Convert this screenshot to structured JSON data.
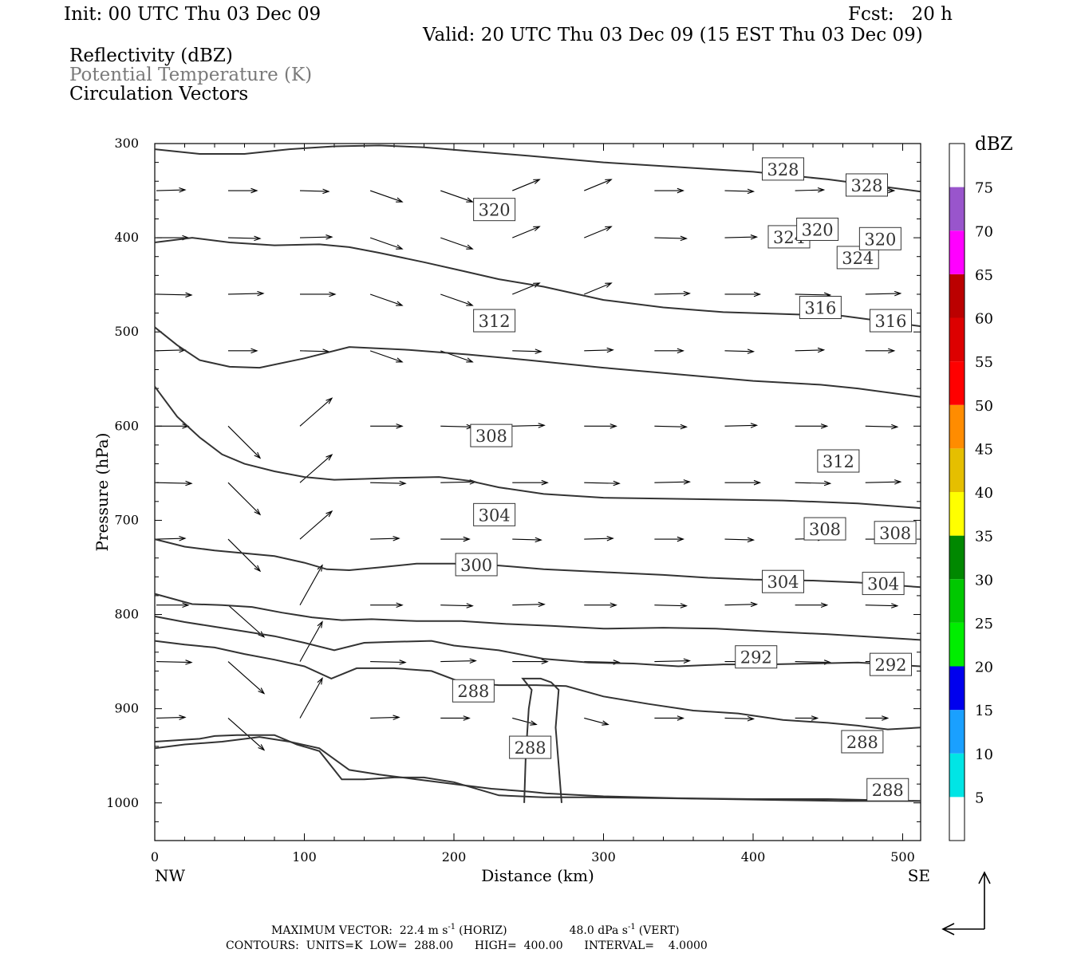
{
  "header": {
    "init": "Init: 00 UTC Thu 03 Dec 09",
    "fcst": "Fcst:   20 h",
    "valid": "Valid: 20 UTC Thu 03 Dec 09 (15 EST Thu 03 Dec 09)",
    "fields": [
      "Reflectivity (dBZ)",
      "Potential Temperature (K)",
      "Circulation Vectors"
    ]
  },
  "colors": {
    "axis": "#000000",
    "contour": "#333333",
    "field2_text": "#7a7a7a"
  },
  "footer": {
    "line1_left": "MAXIMUM VECTOR:  22.4 m s",
    "line1_sup1": "-1",
    "line1_mid": "(HORIZ)",
    "line1_right": "48.0 dPa s",
    "line1_sup2": "-1",
    "line1_end": "(VERT)",
    "line2": "CONTOURS:  UNITS=K  LOW=  288.00      HIGH=  400.00      INTERVAL=    4.0000"
  },
  "colorbar": {
    "unit": "dBZ",
    "ticks": [
      "5",
      "10",
      "15",
      "20",
      "25",
      "30",
      "35",
      "40",
      "45",
      "50",
      "55",
      "60",
      "65",
      "70",
      "75"
    ],
    "colors": [
      "#00e5e5",
      "#1aa0ff",
      "#0000ee",
      "#00ee00",
      "#00c800",
      "#008800",
      "#ffff00",
      "#e5bf00",
      "#ff8c00",
      "#ff0000",
      "#dd0000",
      "#bb0000",
      "#ff00ff",
      "#9955cc"
    ]
  },
  "chart_data": {
    "type": "contour",
    "xlabel": "Distance (km)",
    "ylabel": "Pressure (hPa)",
    "xlim": [
      0,
      512
    ],
    "ylim": [
      1040,
      300
    ],
    "xticks": [
      "0",
      "100",
      "200",
      "300",
      "400",
      "500"
    ],
    "yticks": [
      "300",
      "400",
      "500",
      "600",
      "700",
      "800",
      "900",
      "1000"
    ],
    "x_end_labels": {
      "left": "NW",
      "right": "SE"
    },
    "contour_units": "K",
    "contour_low": 288,
    "contour_high": 400,
    "contour_interval": 4,
    "contours": [
      {
        "level": 328,
        "labels": [
          [
            420,
            327
          ],
          [
            476,
            344
          ]
        ],
        "points": [
          [
            0,
            306
          ],
          [
            30,
            311
          ],
          [
            60,
            311
          ],
          [
            90,
            306
          ],
          [
            120,
            303
          ],
          [
            150,
            302
          ],
          [
            180,
            304
          ],
          [
            210,
            308
          ],
          [
            250,
            313
          ],
          [
            300,
            320
          ],
          [
            350,
            325
          ],
          [
            400,
            330
          ],
          [
            450,
            338
          ],
          [
            512,
            351
          ]
        ]
      },
      {
        "level": 324,
        "labels": [
          [
            424,
            399
          ],
          [
            470,
            421
          ]
        ],
        "points": [
          [
            0,
            405
          ],
          [
            25,
            400
          ],
          [
            50,
            405
          ],
          [
            80,
            408
          ],
          [
            110,
            407
          ],
          [
            130,
            410
          ],
          [
            150,
            416
          ],
          [
            180,
            426
          ],
          [
            205,
            435
          ],
          [
            230,
            444
          ],
          [
            260,
            452
          ],
          [
            300,
            466
          ],
          [
            340,
            474
          ],
          [
            380,
            479
          ],
          [
            420,
            481
          ],
          [
            460,
            483
          ],
          [
            512,
            494
          ]
        ]
      },
      {
        "level": 320,
        "labels": [
          [
            227,
            370
          ],
          [
            443,
            391
          ],
          [
            485,
            401
          ]
        ],
        "points": [
          [
            0,
            495
          ],
          [
            15,
            514
          ],
          [
            30,
            530
          ],
          [
            50,
            537
          ],
          [
            70,
            538
          ],
          [
            100,
            528
          ],
          [
            130,
            516
          ],
          [
            170,
            519
          ],
          [
            210,
            524
          ],
          [
            250,
            530
          ],
          [
            300,
            538
          ],
          [
            350,
            545
          ],
          [
            400,
            552
          ],
          [
            445,
            556
          ],
          [
            470,
            560
          ],
          [
            512,
            569
          ]
        ]
      },
      {
        "level": 316,
        "labels": [
          [
            445,
            474
          ],
          [
            492,
            488
          ]
        ],
        "points": [
          [
            0,
            558
          ],
          [
            15,
            590
          ],
          [
            30,
            612
          ],
          [
            45,
            630
          ],
          [
            60,
            640
          ],
          [
            80,
            648
          ],
          [
            100,
            654
          ],
          [
            120,
            657
          ],
          [
            140,
            656
          ],
          [
            160,
            655
          ],
          [
            190,
            654
          ],
          [
            210,
            658
          ],
          [
            230,
            665
          ],
          [
            260,
            672
          ],
          [
            300,
            676
          ],
          [
            340,
            677
          ],
          [
            380,
            678
          ],
          [
            420,
            679
          ],
          [
            470,
            682
          ],
          [
            512,
            687
          ]
        ]
      },
      {
        "level": 312,
        "labels": [
          [
            227,
            488
          ],
          [
            457,
            637
          ]
        ],
        "points": [
          [
            0,
            720
          ],
          [
            20,
            728
          ],
          [
            40,
            732
          ],
          [
            60,
            735
          ],
          [
            80,
            738
          ],
          [
            100,
            745
          ],
          [
            115,
            752
          ],
          [
            130,
            753
          ],
          [
            150,
            750
          ],
          [
            175,
            746
          ],
          [
            200,
            746
          ],
          [
            230,
            748
          ],
          [
            260,
            752
          ],
          [
            300,
            755
          ],
          [
            340,
            758
          ],
          [
            370,
            761
          ],
          [
            400,
            763
          ],
          [
            440,
            764
          ],
          [
            470,
            766
          ],
          [
            512,
            771
          ]
        ]
      },
      {
        "level": 308,
        "labels": [
          [
            225,
            610
          ],
          [
            448,
            709
          ],
          [
            495,
            713
          ]
        ],
        "points": [
          [
            0,
            778
          ],
          [
            25,
            789
          ],
          [
            45,
            790
          ],
          [
            65,
            792
          ],
          [
            85,
            798
          ],
          [
            105,
            803
          ],
          [
            125,
            806
          ],
          [
            145,
            805
          ],
          [
            175,
            807
          ],
          [
            205,
            807
          ],
          [
            235,
            810
          ],
          [
            265,
            812
          ],
          [
            300,
            815
          ],
          [
            340,
            814
          ],
          [
            375,
            815
          ],
          [
            410,
            818
          ],
          [
            450,
            821
          ],
          [
            512,
            827
          ]
        ]
      },
      {
        "level": 304,
        "labels": [
          [
            227,
            694
          ],
          [
            420,
            765
          ],
          [
            487,
            767
          ]
        ],
        "points": [
          [
            0,
            802
          ],
          [
            20,
            808
          ],
          [
            40,
            813
          ],
          [
            60,
            818
          ],
          [
            80,
            823
          ],
          [
            100,
            830
          ],
          [
            120,
            838
          ],
          [
            140,
            830
          ],
          [
            160,
            829
          ],
          [
            185,
            828
          ],
          [
            200,
            833
          ],
          [
            230,
            838
          ],
          [
            260,
            847
          ],
          [
            290,
            851
          ],
          [
            320,
            852
          ],
          [
            350,
            855
          ],
          [
            380,
            853
          ],
          [
            410,
            853
          ],
          [
            440,
            852
          ],
          [
            470,
            851
          ],
          [
            512,
            855
          ]
        ]
      },
      {
        "level": 300,
        "labels": [
          [
            215,
            747
          ]
        ],
        "points": [
          [
            0,
            828
          ],
          [
            20,
            832
          ],
          [
            40,
            835
          ],
          [
            60,
            842
          ],
          [
            80,
            848
          ],
          [
            100,
            855
          ],
          [
            118,
            868
          ],
          [
            135,
            857
          ],
          [
            160,
            857
          ],
          [
            185,
            860
          ],
          [
            205,
            872
          ],
          [
            230,
            875
          ],
          [
            255,
            875
          ],
          [
            275,
            876
          ],
          [
            300,
            887
          ],
          [
            330,
            895
          ],
          [
            360,
            902
          ],
          [
            390,
            905
          ],
          [
            420,
            912
          ],
          [
            450,
            915
          ],
          [
            470,
            918
          ],
          [
            490,
            922
          ],
          [
            512,
            920
          ]
        ]
      },
      {
        "level": 292,
        "labels": [
          [
            402,
            845
          ],
          [
            492,
            853
          ]
        ],
        "points": [
          [
            0,
            935
          ],
          [
            30,
            932
          ],
          [
            40,
            929
          ],
          [
            55,
            928
          ],
          [
            65,
            928
          ],
          [
            80,
            928
          ],
          [
            95,
            938
          ],
          [
            110,
            945
          ],
          [
            125,
            975
          ],
          [
            140,
            975
          ],
          [
            160,
            973
          ],
          [
            180,
            973
          ],
          [
            200,
            978
          ],
          [
            230,
            992
          ],
          [
            260,
            994
          ],
          [
            290,
            994
          ],
          [
            340,
            995
          ],
          [
            380,
            996
          ],
          [
            420,
            997
          ],
          [
            460,
            998
          ],
          [
            512,
            998
          ]
        ]
      },
      {
        "level": 288,
        "labels": [
          [
            213,
            881
          ],
          [
            251,
            941
          ],
          [
            473,
            935
          ],
          [
            490,
            986
          ]
        ],
        "points": [
          [
            0,
            942
          ],
          [
            20,
            938
          ],
          [
            45,
            935
          ],
          [
            70,
            930
          ],
          [
            90,
            935
          ],
          [
            110,
            942
          ],
          [
            130,
            965
          ],
          [
            150,
            970
          ],
          [
            175,
            975
          ],
          [
            200,
            980
          ],
          [
            225,
            985
          ],
          [
            250,
            988
          ],
          [
            262,
            990
          ],
          [
            275,
            991
          ],
          [
            300,
            993
          ],
          [
            350,
            995
          ],
          [
            400,
            996
          ],
          [
            450,
            996
          ],
          [
            512,
            998
          ]
        ]
      }
    ],
    "vector_grid": {
      "rows_hPa": [
        350,
        400,
        460,
        520,
        600,
        660,
        720,
        790,
        850,
        910
      ],
      "cols_km": [
        0,
        48,
        96,
        143,
        190,
        238,
        286,
        333,
        380,
        427,
        474
      ],
      "note_units": "m s-1 horizontal / dPa s-1 vertical"
    }
  }
}
